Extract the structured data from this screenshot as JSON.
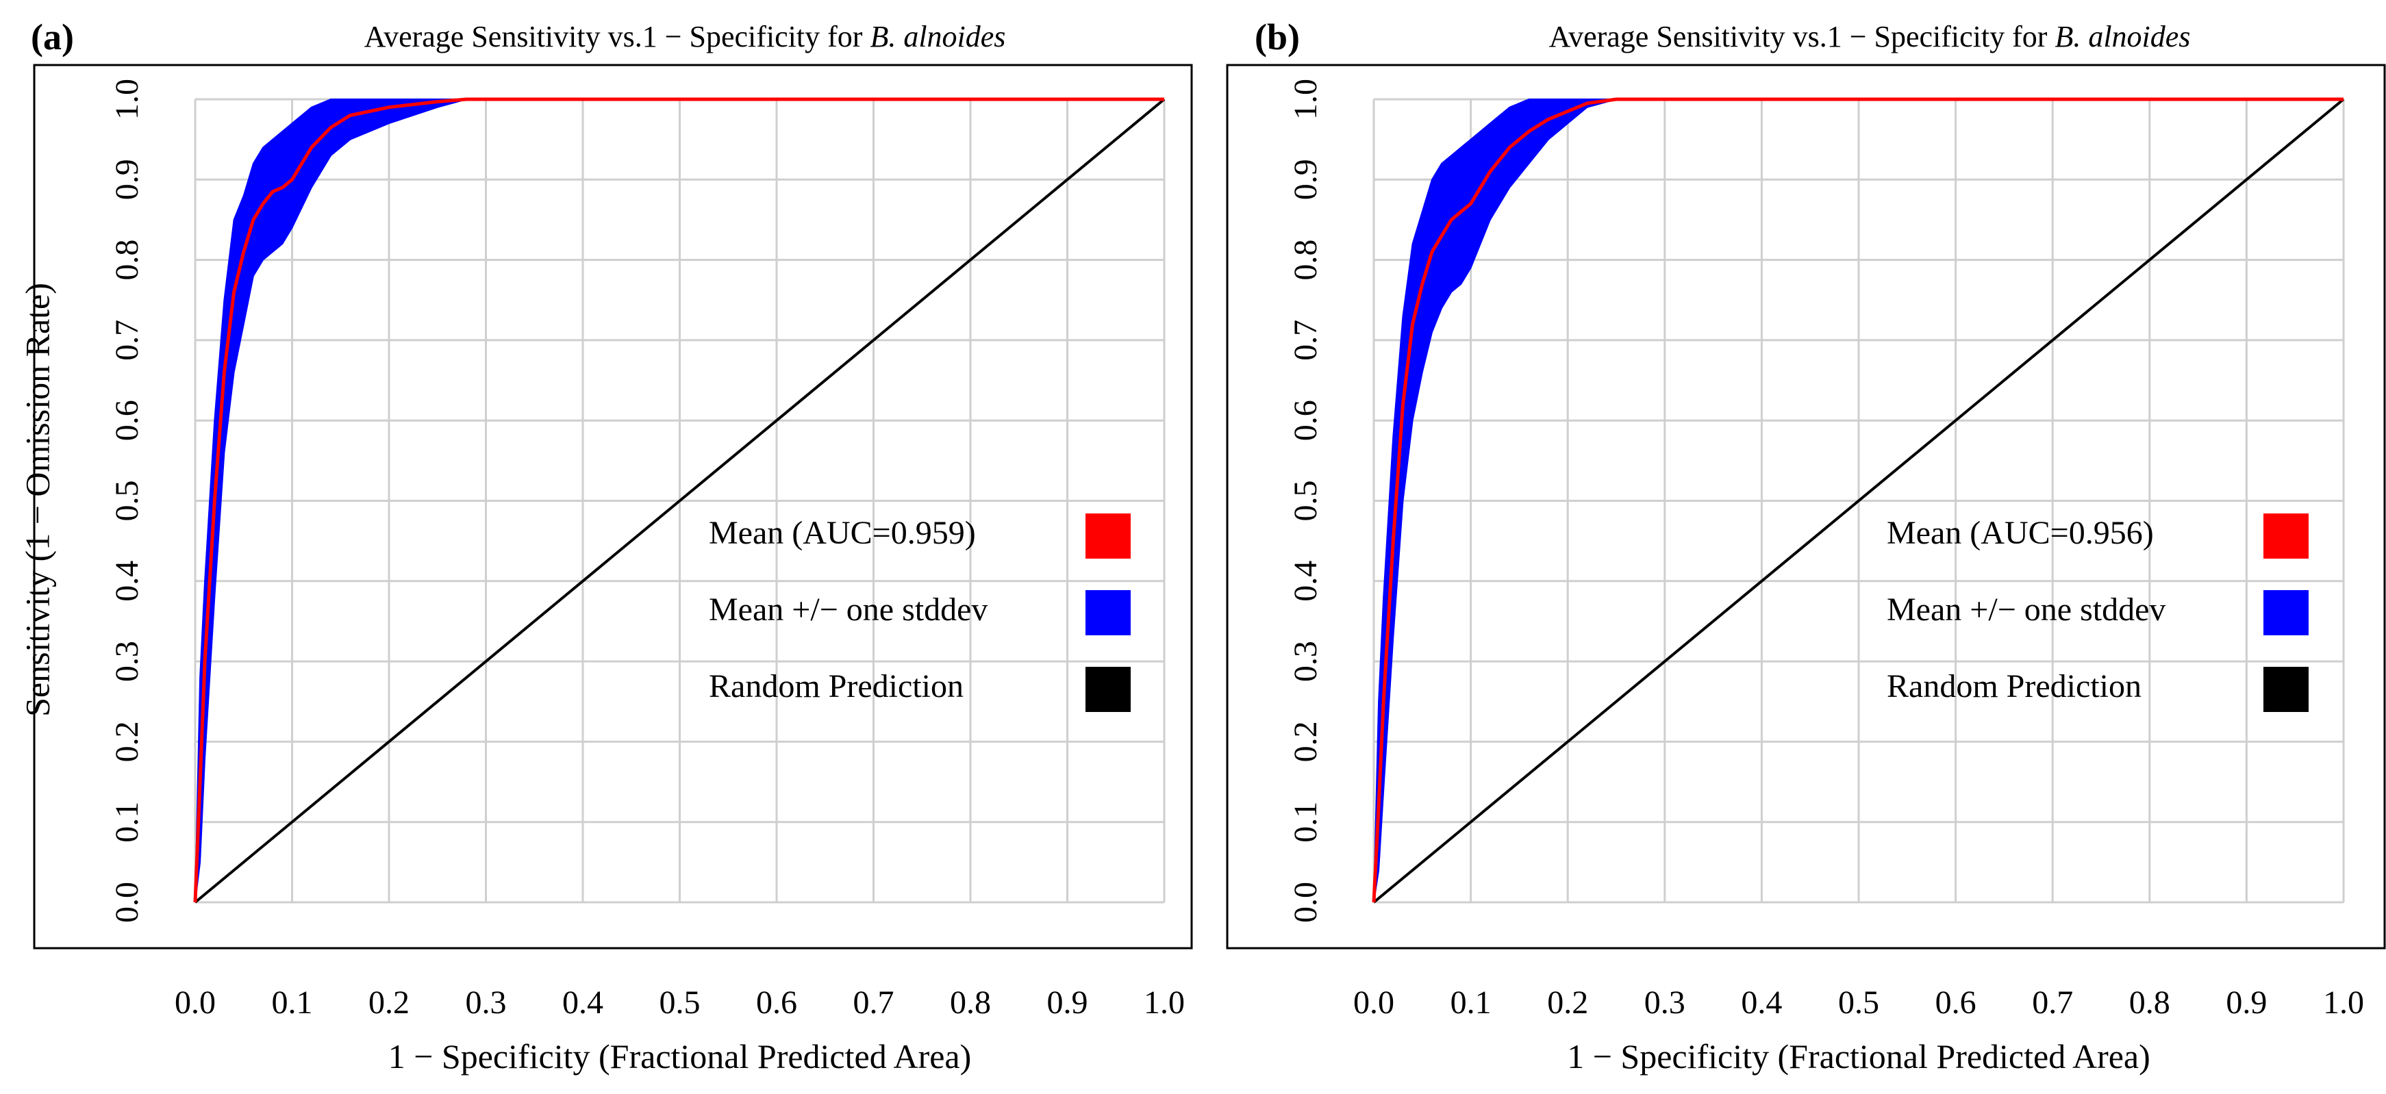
{
  "chart_data": [
    {
      "type": "line",
      "panel_label": "(a)",
      "title": "Average Sensitivity vs.1 − Specificity for",
      "title_species": "B. alnoides",
      "xlabel": "1 − Specificity (Fractional Predicted Area)",
      "ylabel": "Sensitivity (1 − Omission Rate)",
      "xlim": [
        0,
        1
      ],
      "ylim": [
        0,
        1
      ],
      "x_ticks": [
        "0.0",
        "0.1",
        "0.2",
        "0.3",
        "0.4",
        "0.5",
        "0.6",
        "0.7",
        "0.8",
        "0.9",
        "1.0"
      ],
      "y_ticks": [
        "0.0",
        "0.1",
        "0.2",
        "0.3",
        "0.4",
        "0.5",
        "0.6",
        "0.7",
        "0.8",
        "0.9",
        "1.0"
      ],
      "grid": true,
      "legend_position": "right",
      "series": [
        {
          "name": "Mean (AUC=0.959)",
          "color": "#ff0000",
          "x": [
            0,
            0.005,
            0.01,
            0.02,
            0.03,
            0.04,
            0.05,
            0.06,
            0.07,
            0.08,
            0.09,
            0.1,
            0.12,
            0.14,
            0.16,
            0.2,
            0.25,
            0.28,
            0.4,
            0.6,
            0.8,
            1.0
          ],
          "y": [
            0,
            0.15,
            0.3,
            0.5,
            0.66,
            0.76,
            0.81,
            0.85,
            0.87,
            0.885,
            0.89,
            0.9,
            0.94,
            0.965,
            0.98,
            0.99,
            0.997,
            1.0,
            1.0,
            1.0,
            1.0,
            1.0
          ]
        },
        {
          "name": "Mean +/− one stddev",
          "color": "#0000ff",
          "x": [
            0,
            0.005,
            0.01,
            0.02,
            0.03,
            0.04,
            0.05,
            0.06,
            0.07,
            0.08,
            0.09,
            0.1,
            0.12,
            0.14,
            0.16,
            0.2,
            0.25,
            0.28
          ],
          "upper": [
            0,
            0.28,
            0.4,
            0.6,
            0.75,
            0.85,
            0.88,
            0.92,
            0.94,
            0.95,
            0.96,
            0.97,
            0.99,
            1.0,
            1.0,
            1.0,
            1.0,
            1.0
          ],
          "lower": [
            0,
            0.05,
            0.18,
            0.38,
            0.56,
            0.66,
            0.72,
            0.78,
            0.8,
            0.81,
            0.82,
            0.84,
            0.89,
            0.93,
            0.95,
            0.97,
            0.99,
            1.0
          ]
        },
        {
          "name": "Random Prediction",
          "color": "#000000",
          "x": [
            0,
            1
          ],
          "y": [
            0,
            1
          ]
        }
      ]
    },
    {
      "type": "line",
      "panel_label": "(b)",
      "title": "Average Sensitivity vs.1 − Specificity for",
      "title_species": "B. alnoides",
      "xlabel": "1 − Specificity (Fractional Predicted Area)",
      "ylabel": "",
      "xlim": [
        0,
        1
      ],
      "ylim": [
        0,
        1
      ],
      "x_ticks": [
        "0.0",
        "0.1",
        "0.2",
        "0.3",
        "0.4",
        "0.5",
        "0.6",
        "0.7",
        "0.8",
        "0.9",
        "1.0"
      ],
      "y_ticks": [
        "0.0",
        "0.1",
        "0.2",
        "0.3",
        "0.4",
        "0.5",
        "0.6",
        "0.7",
        "0.8",
        "0.9",
        "1.0"
      ],
      "grid": true,
      "legend_position": "right",
      "series": [
        {
          "name": "Mean (AUC=0.956)",
          "color": "#ff0000",
          "x": [
            0,
            0.005,
            0.01,
            0.02,
            0.03,
            0.04,
            0.05,
            0.06,
            0.07,
            0.08,
            0.09,
            0.1,
            0.12,
            0.14,
            0.16,
            0.18,
            0.2,
            0.22,
            0.25,
            0.4,
            0.6,
            0.8,
            1.0
          ],
          "y": [
            0,
            0.12,
            0.25,
            0.45,
            0.62,
            0.72,
            0.77,
            0.81,
            0.83,
            0.85,
            0.86,
            0.87,
            0.91,
            0.94,
            0.96,
            0.975,
            0.985,
            0.995,
            1.0,
            1.0,
            1.0,
            1.0,
            1.0
          ]
        },
        {
          "name": "Mean +/− one stddev",
          "color": "#0000ff",
          "x": [
            0,
            0.005,
            0.01,
            0.02,
            0.03,
            0.04,
            0.05,
            0.06,
            0.07,
            0.08,
            0.09,
            0.1,
            0.12,
            0.14,
            0.16,
            0.18,
            0.2,
            0.22,
            0.25
          ],
          "upper": [
            0,
            0.25,
            0.38,
            0.58,
            0.73,
            0.82,
            0.86,
            0.9,
            0.92,
            0.93,
            0.94,
            0.95,
            0.97,
            0.99,
            1.0,
            1.0,
            1.0,
            1.0,
            1.0
          ],
          "lower": [
            0,
            0.04,
            0.14,
            0.33,
            0.5,
            0.6,
            0.66,
            0.71,
            0.74,
            0.76,
            0.77,
            0.79,
            0.85,
            0.89,
            0.92,
            0.95,
            0.97,
            0.99,
            1.0
          ]
        },
        {
          "name": "Random Prediction",
          "color": "#000000",
          "x": [
            0,
            1
          ],
          "y": [
            0,
            1
          ]
        }
      ]
    }
  ]
}
